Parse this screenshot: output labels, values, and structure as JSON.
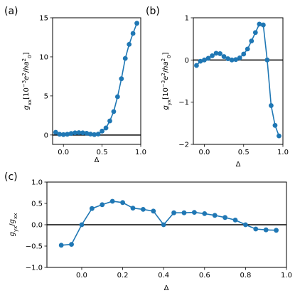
{
  "colors": {
    "series": "#1f77b4",
    "zero_line": "#000000",
    "axes": "#000000"
  },
  "chart_data": [
    {
      "panel": "(a)",
      "type": "line",
      "title": "",
      "xlabel": "Δ",
      "ylabel": "g_xx [10^-3 e^2/ha_0^2]",
      "xlim": [
        -0.14,
        1.0
      ],
      "ylim": [
        -1.2,
        15
      ],
      "xticks": [
        0.0,
        0.5,
        1.0
      ],
      "xtick_labels": [
        "0.0",
        "0.5",
        "1.0"
      ],
      "yticks": [
        0,
        5,
        10,
        15
      ],
      "ytick_labels": [
        "0",
        "5",
        "10",
        "15"
      ],
      "grid": false,
      "zero_line": true,
      "series": [
        {
          "x": [
            -0.1,
            -0.05,
            0.0,
            0.05,
            0.1,
            0.15,
            0.2,
            0.25,
            0.3,
            0.35,
            0.4,
            0.45,
            0.5,
            0.55,
            0.6,
            0.65,
            0.7,
            0.75,
            0.8,
            0.85,
            0.9,
            0.95
          ],
          "y": [
            0.35,
            0.1,
            0.05,
            0.1,
            0.2,
            0.28,
            0.3,
            0.28,
            0.22,
            0.12,
            0.05,
            0.12,
            0.5,
            0.9,
            1.8,
            3.0,
            4.9,
            7.2,
            9.8,
            11.6,
            13.0,
            14.3
          ]
        }
      ]
    },
    {
      "panel": "(b)",
      "type": "line",
      "title": "",
      "xlabel": "Δ",
      "ylabel": "g_yx [10^-3 e^2/ha_0^2]",
      "xlim": [
        -0.14,
        1.0
      ],
      "ylim": [
        -2,
        1
      ],
      "xticks": [
        0.0,
        0.5,
        1.0
      ],
      "xtick_labels": [
        "0.0",
        "0.5",
        "1.0"
      ],
      "yticks": [
        -2,
        -1,
        0,
        1
      ],
      "ytick_labels": [
        "−2",
        "−1",
        "0",
        "1"
      ],
      "grid": false,
      "zero_line": true,
      "series": [
        {
          "x": [
            -0.1,
            -0.05,
            0.0,
            0.05,
            0.1,
            0.15,
            0.2,
            0.25,
            0.3,
            0.35,
            0.4,
            0.45,
            0.5,
            0.55,
            0.6,
            0.65,
            0.7,
            0.75,
            0.8,
            0.85,
            0.9,
            0.95
          ],
          "y": [
            -0.13,
            -0.03,
            0.0,
            0.04,
            0.1,
            0.16,
            0.15,
            0.08,
            0.03,
            0.0,
            0.01,
            0.05,
            0.14,
            0.26,
            0.45,
            0.65,
            0.85,
            0.83,
            0.0,
            -1.08,
            -1.55,
            -1.8
          ]
        }
      ]
    },
    {
      "panel": "(c)",
      "type": "line",
      "title": "",
      "xlabel": "Δ",
      "ylabel": "g_yx/g_xx",
      "xlim": [
        -0.17,
        1.0
      ],
      "ylim": [
        -1.0,
        1.0
      ],
      "xticks": [
        0.0,
        0.2,
        0.4,
        0.6,
        0.8,
        1.0
      ],
      "xtick_labels": [
        "0.0",
        "0.2",
        "0.4",
        "0.6",
        "0.8",
        "1.0"
      ],
      "yticks": [
        -1.0,
        -0.5,
        0.0,
        0.5,
        1.0
      ],
      "ytick_labels": [
        "−1.0",
        "−0.5",
        "0.0",
        "0.5",
        "1.0"
      ],
      "grid": false,
      "zero_line": true,
      "series": [
        {
          "x": [
            -0.1,
            -0.05,
            0.0,
            0.05,
            0.1,
            0.15,
            0.2,
            0.25,
            0.3,
            0.35,
            0.4,
            0.45,
            0.5,
            0.55,
            0.6,
            0.65,
            0.7,
            0.75,
            0.8,
            0.85,
            0.9,
            0.95
          ],
          "y": [
            -0.48,
            -0.46,
            0.0,
            0.38,
            0.47,
            0.55,
            0.52,
            0.39,
            0.36,
            0.32,
            0.0,
            0.28,
            0.28,
            0.29,
            0.26,
            0.22,
            0.17,
            0.11,
            0.0,
            -0.1,
            -0.12,
            -0.13
          ]
        }
      ]
    }
  ]
}
